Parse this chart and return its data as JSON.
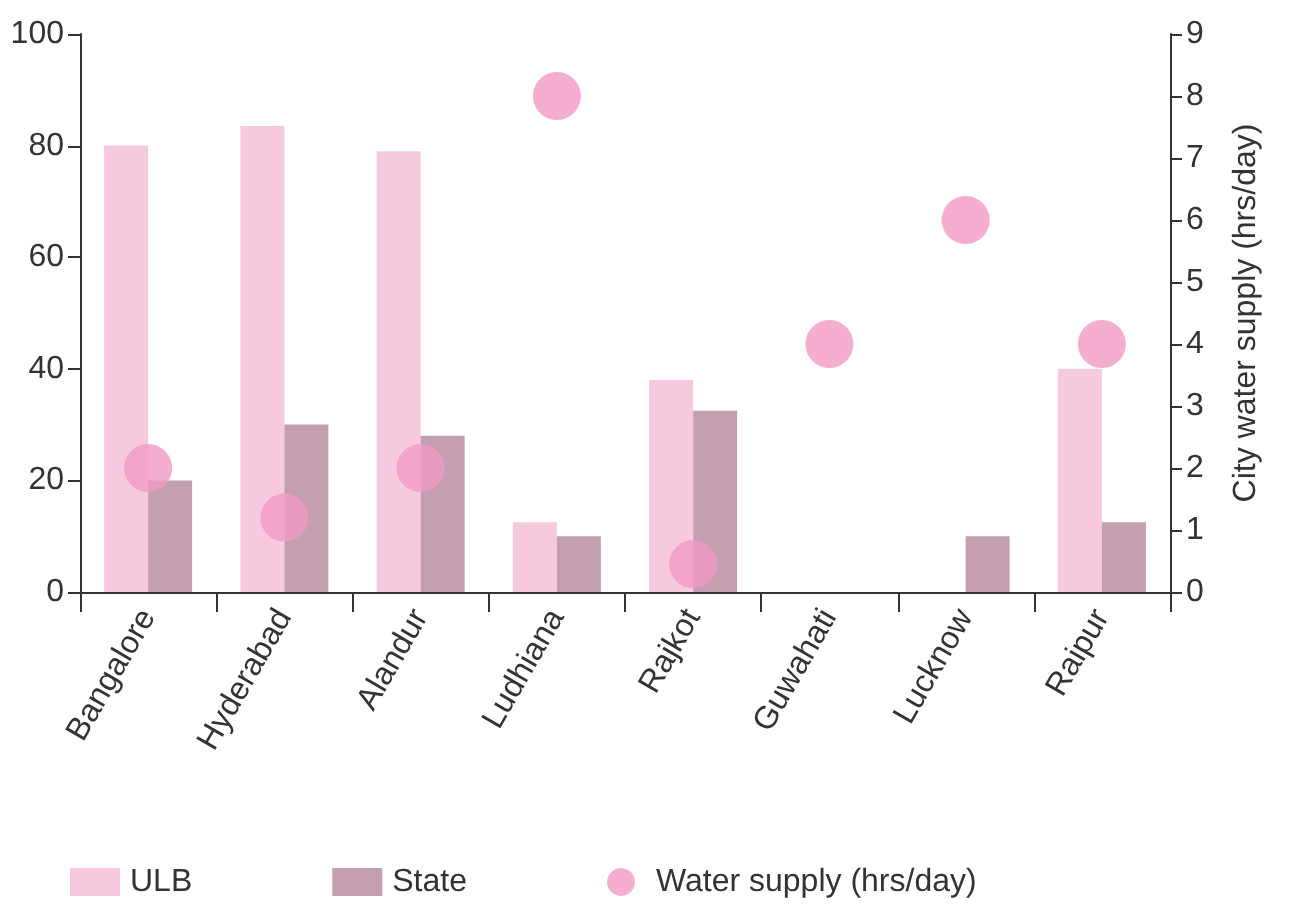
{
  "chart_data": {
    "type": "bar",
    "y2label": "City water supply (hrs/day)",
    "categories": [
      "Bangalore",
      "Hyderabad",
      "Alandur",
      "Ludhiana",
      "Rajkot",
      "Guwahati",
      "Lucknow",
      "Raipur"
    ],
    "series": [
      {
        "name": "ULB",
        "color": "#f7c9de",
        "values": [
          80,
          83.5,
          79,
          12.5,
          38,
          null,
          null,
          40
        ]
      },
      {
        "name": "State",
        "color": "#c49fb0",
        "values": [
          20,
          30,
          28,
          10,
          32.5,
          null,
          10,
          12.5
        ]
      },
      {
        "name": "Water supply (hrs/day)",
        "type": "scatter",
        "axis": "y2",
        "color": "#f39ac3",
        "values": [
          2,
          1.2,
          2,
          8,
          0.45,
          4,
          6,
          4
        ]
      }
    ],
    "ylim": [
      0,
      100
    ],
    "yticks": [
      0,
      20,
      40,
      60,
      80,
      100
    ],
    "y2lim": [
      0,
      9
    ],
    "y2ticks": [
      0,
      1,
      2,
      3,
      4,
      5,
      6,
      7,
      8,
      9
    ],
    "grid": false,
    "legend": "bottom",
    "marker": "circle"
  }
}
